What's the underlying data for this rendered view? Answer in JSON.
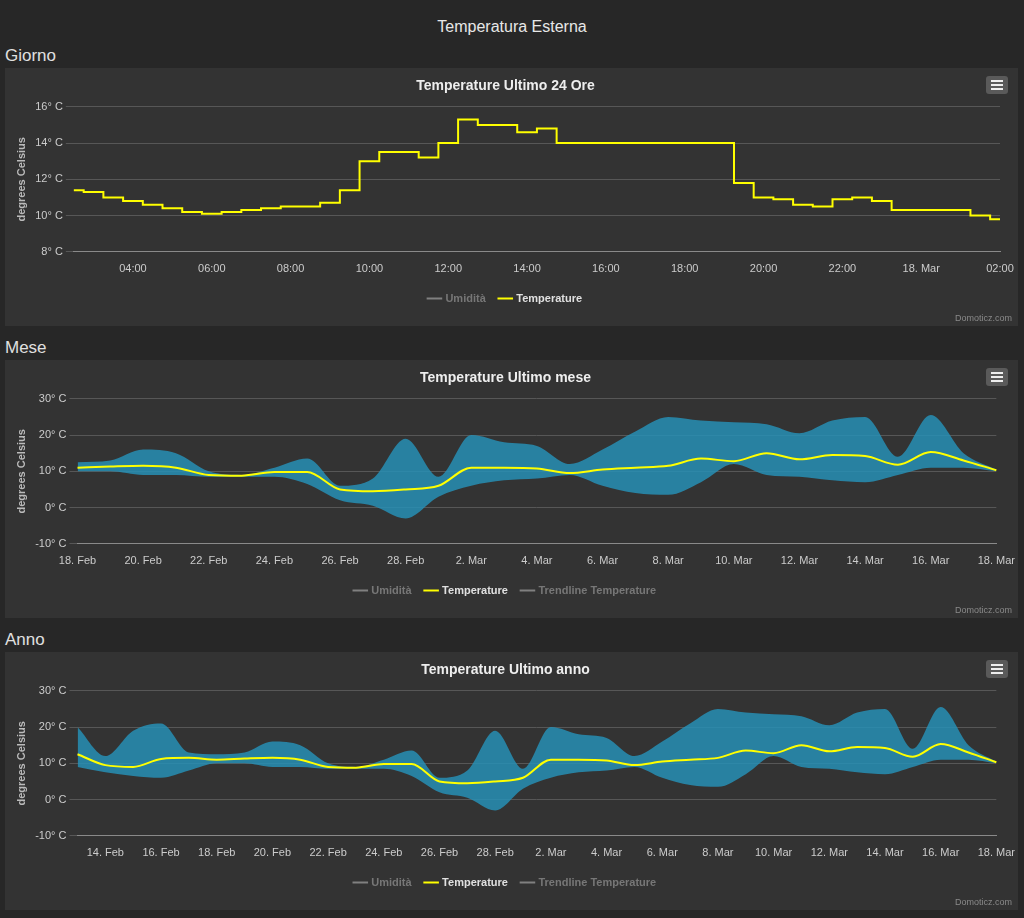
{
  "page_title": "Temperatura Esterna",
  "sections": [
    "Giorno",
    "Mese",
    "Anno"
  ],
  "chart_data": [
    {
      "type": "line",
      "title": "Temperature Ultimo 24 Ore",
      "y_label": "degrees Celsius",
      "credits": "Domoticz.com",
      "categories": [
        null,
        null,
        null,
        "04:00",
        null,
        null,
        null,
        "06:00",
        null,
        null,
        null,
        "08:00",
        null,
        null,
        null,
        "10:00",
        null,
        null,
        null,
        "12:00",
        null,
        null,
        null,
        "14:00",
        null,
        null,
        null,
        "16:00",
        null,
        null,
        null,
        "18:00",
        null,
        null,
        null,
        "20:00",
        null,
        null,
        null,
        "22:00",
        null,
        null,
        null,
        "18. Mar",
        null,
        null,
        null,
        "02:00"
      ],
      "series": [
        {
          "name": "Umidità",
          "color": "#808080",
          "values": [
            null,
            null,
            null,
            null,
            null,
            null,
            null,
            null,
            null,
            null,
            null,
            null,
            null,
            null,
            null,
            null,
            null,
            null,
            null,
            null,
            null,
            null,
            null,
            null,
            null,
            null,
            null,
            null,
            null,
            null,
            null,
            null,
            null,
            null,
            null,
            null,
            null,
            null,
            null,
            null,
            null,
            null,
            null,
            null,
            null,
            null,
            null,
            null
          ]
        },
        {
          "name": "Temperature",
          "color": "#ffff00",
          "line_style": "step",
          "values": [
            11.4,
            11.3,
            11.0,
            10.8,
            10.6,
            10.4,
            10.2,
            10.1,
            10.2,
            10.3,
            10.4,
            10.5,
            10.5,
            10.7,
            11.4,
            13.0,
            13.5,
            13.5,
            13.2,
            14.0,
            15.3,
            15.0,
            15.0,
            14.6,
            14.8,
            14.0,
            14.0,
            14.0,
            14.0,
            14.0,
            14.0,
            14.0,
            14.0,
            14.0,
            11.8,
            11.0,
            10.9,
            10.6,
            10.5,
            10.9,
            11.0,
            10.8,
            10.3,
            10.3,
            10.3,
            10.3,
            10.0,
            9.8
          ]
        }
      ],
      "ylim": [
        8,
        16
      ],
      "yticks": [
        {
          "value": 8,
          "label": "8° C"
        },
        {
          "value": 10,
          "label": "10° C"
        },
        {
          "value": 12,
          "label": "12° C"
        },
        {
          "value": 14,
          "label": "14° C"
        },
        {
          "value": 16,
          "label": "16° C"
        }
      ],
      "grid": true,
      "legend": "bottom"
    },
    {
      "type": "line",
      "title": "Temperature Ultimo mese",
      "y_label": "degrees Celsius",
      "credits": "Domoticz.com",
      "categories": [
        "18. Feb",
        null,
        "20. Feb",
        null,
        "22. Feb",
        null,
        "24. Feb",
        null,
        "26. Feb",
        null,
        "28. Feb",
        null,
        "2. Mar",
        null,
        "4. Mar",
        null,
        "6. Mar",
        null,
        "8. Mar",
        null,
        "10. Mar",
        null,
        "12. Mar",
        null,
        "14. Mar",
        null,
        "16. Mar",
        null,
        "18. Mar"
      ],
      "series": [
        {
          "name": "Umidità",
          "color": "#808080",
          "values": [
            null,
            null,
            null,
            null,
            null,
            null,
            null,
            null,
            null,
            null,
            null,
            null,
            null,
            null,
            null,
            null,
            null,
            null,
            null,
            null,
            null,
            null,
            null,
            null,
            null,
            null,
            null,
            null,
            null
          ]
        },
        {
          "name": "Temperature",
          "color": "#ffff00",
          "values": [
            11,
            11.3,
            11.5,
            11,
            9,
            8.8,
            9.8,
            9.8,
            5,
            4.5,
            5,
            6,
            11,
            11,
            10.8,
            9.5,
            10.5,
            11,
            11.5,
            13.5,
            12.8,
            15,
            13.3,
            14.5,
            14.2,
            11.8,
            15.3,
            13,
            10.3
          ],
          "min": [
            10,
            10,
            9,
            9,
            8.5,
            8.5,
            8.5,
            6.5,
            2,
            0.5,
            -3,
            3,
            6,
            7.5,
            8,
            9,
            6,
            4,
            3.5,
            7,
            12,
            9,
            8.5,
            7.5,
            7,
            9,
            11,
            11,
            10
          ],
          "max": [
            12.5,
            13,
            16,
            15,
            10,
            9,
            11,
            13.5,
            6,
            8,
            19,
            8.5,
            20,
            18,
            17,
            12,
            16,
            21,
            25,
            24,
            23.5,
            23,
            20.5,
            24,
            25,
            14,
            25.5,
            15,
            10.5
          ]
        },
        {
          "name": "Trendline Temperature",
          "color": "#808080",
          "values": [
            null,
            null,
            null,
            null,
            null,
            null,
            null,
            null,
            null,
            null,
            null,
            null,
            null,
            null,
            null,
            null,
            null,
            null,
            null,
            null,
            null,
            null,
            null,
            null,
            null,
            null,
            null,
            null,
            null
          ]
        }
      ],
      "ylim": [
        -10,
        30
      ],
      "yticks": [
        {
          "value": -10,
          "label": "-10° C"
        },
        {
          "value": 0,
          "label": "0° C"
        },
        {
          "value": 10,
          "label": "10° C"
        },
        {
          "value": 20,
          "label": "20° C"
        },
        {
          "value": 30,
          "label": "30° C"
        }
      ],
      "grid": true,
      "legend": "bottom"
    },
    {
      "type": "line",
      "title": "Temperature Ultimo anno",
      "y_label": "degrees Celsius",
      "credits": "Domoticz.com",
      "categories": [
        null,
        "14. Feb",
        null,
        "16. Feb",
        null,
        "18. Feb",
        null,
        "20. Feb",
        null,
        "22. Feb",
        null,
        "24. Feb",
        null,
        "26. Feb",
        null,
        "28. Feb",
        null,
        "2. Mar",
        null,
        "4. Mar",
        null,
        "6. Mar",
        null,
        "8. Mar",
        null,
        "10. Mar",
        null,
        "12. Mar",
        null,
        "14. Mar",
        null,
        "16. Mar",
        null,
        "18. Mar"
      ],
      "series": [
        {
          "name": "Umidità",
          "color": "#808080",
          "values": [
            null,
            null,
            null,
            null,
            null,
            null,
            null,
            null,
            null,
            null,
            null,
            null,
            null,
            null,
            null,
            null,
            null,
            null,
            null,
            null,
            null,
            null,
            null,
            null,
            null,
            null,
            null,
            null,
            null,
            null,
            null,
            null,
            null,
            null
          ]
        },
        {
          "name": "Temperature",
          "color": "#ffff00",
          "values": [
            12.5,
            9.5,
            9,
            11.2,
            11.5,
            11,
            11.3,
            11.5,
            11,
            9,
            8.8,
            9.8,
            9.8,
            5,
            4.5,
            5,
            6,
            11,
            11,
            10.8,
            9.5,
            10.5,
            11,
            11.5,
            13.5,
            12.8,
            15,
            13.3,
            14.5,
            14.2,
            11.8,
            15.3,
            13,
            10.3
          ],
          "min": [
            9,
            7.5,
            6.5,
            6,
            8,
            10,
            10,
            9,
            9,
            8.5,
            8.5,
            8.5,
            6.5,
            2,
            0.5,
            -3,
            3,
            6,
            7.5,
            8,
            9,
            6,
            4,
            3.5,
            7,
            12,
            9,
            8.5,
            7.5,
            7,
            9,
            11,
            11,
            10
          ],
          "max": [
            20,
            12,
            19,
            21,
            13,
            12.5,
            13,
            16,
            15,
            10,
            9,
            11,
            13.5,
            6,
            8,
            19,
            8.5,
            20,
            18,
            17,
            12,
            16,
            21,
            25,
            24,
            23.5,
            23,
            20.5,
            24,
            25,
            14,
            25.5,
            15,
            10.5
          ]
        },
        {
          "name": "Trendline Temperature",
          "color": "#808080",
          "values": [
            null,
            null,
            null,
            null,
            null,
            null,
            null,
            null,
            null,
            null,
            null,
            null,
            null,
            null,
            null,
            null,
            null,
            null,
            null,
            null,
            null,
            null,
            null,
            null,
            null,
            null,
            null,
            null,
            null,
            null,
            null,
            null,
            null,
            null
          ]
        }
      ],
      "ylim": [
        -10,
        30
      ],
      "yticks": [
        {
          "value": -10,
          "label": "-10° C"
        },
        {
          "value": 0,
          "label": "0° C"
        },
        {
          "value": 10,
          "label": "10° C"
        },
        {
          "value": 20,
          "label": "20° C"
        },
        {
          "value": 30,
          "label": "30° C"
        }
      ],
      "grid": true,
      "legend": "bottom"
    }
  ]
}
